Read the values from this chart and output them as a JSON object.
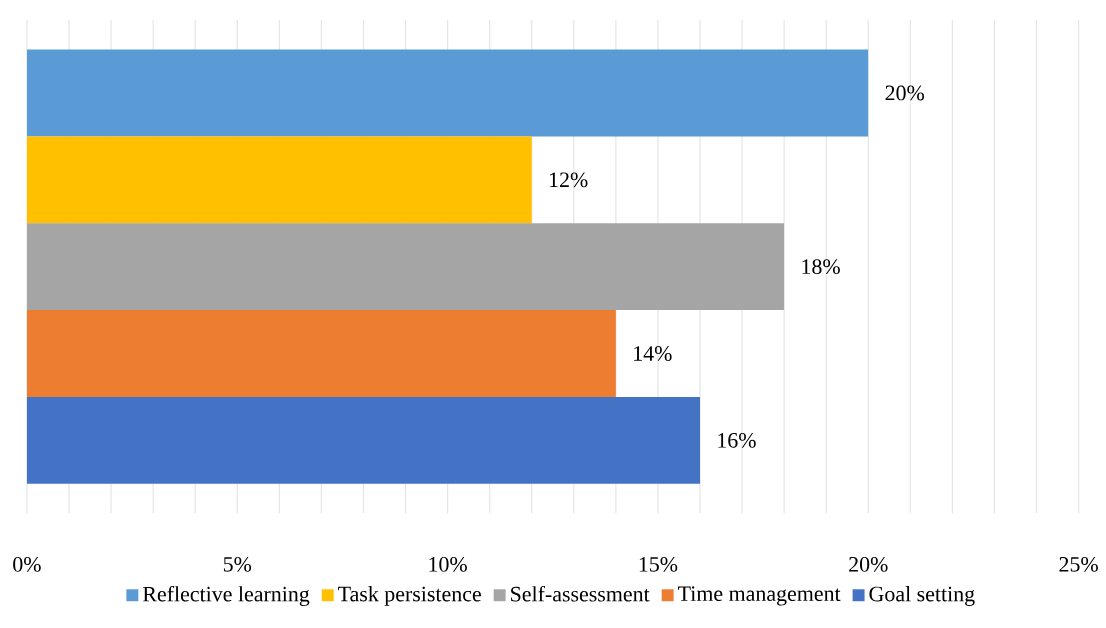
{
  "chart_data": {
    "type": "bar",
    "orientation": "horizontal",
    "categories": [
      null
    ],
    "series": [
      {
        "name": "Reflective learning",
        "color": "#5b9bd5",
        "values": [
          20
        ],
        "value_labels": [
          "20%"
        ]
      },
      {
        "name": "Task persistence",
        "color": "#ffc000",
        "values": [
          12
        ],
        "value_labels": [
          "12%"
        ]
      },
      {
        "name": "Self-assessment",
        "color": "#a5a5a5",
        "values": [
          18
        ],
        "value_labels": [
          "18%"
        ]
      },
      {
        "name": "Time management",
        "color": "#ed7d31",
        "values": [
          14
        ],
        "value_labels": [
          "14%"
        ]
      },
      {
        "name": "Goal setting",
        "color": "#4472c4",
        "values": [
          16
        ],
        "value_labels": [
          "16%"
        ]
      }
    ],
    "xlim": [
      0,
      25
    ],
    "xticks": [
      {
        "value": 0,
        "label": "0%"
      },
      {
        "value": 1,
        "label": null
      },
      {
        "value": 2,
        "label": null
      },
      {
        "value": 3,
        "label": null
      },
      {
        "value": 4,
        "label": null
      },
      {
        "value": 5,
        "label": "5%"
      },
      {
        "value": 6,
        "label": null
      },
      {
        "value": 7,
        "label": null
      },
      {
        "value": 8,
        "label": null
      },
      {
        "value": 9,
        "label": null
      },
      {
        "value": 10,
        "label": "10%"
      },
      {
        "value": 11,
        "label": null
      },
      {
        "value": 12,
        "label": null
      },
      {
        "value": 13,
        "label": null
      },
      {
        "value": 14,
        "label": null
      },
      {
        "value": 15,
        "label": "15%"
      },
      {
        "value": 16,
        "label": null
      },
      {
        "value": 17,
        "label": null
      },
      {
        "value": 18,
        "label": null
      },
      {
        "value": 19,
        "label": null
      },
      {
        "value": 20,
        "label": "20%"
      },
      {
        "value": 21,
        "label": null
      },
      {
        "value": 22,
        "label": null
      },
      {
        "value": 23,
        "label": null
      },
      {
        "value": 24,
        "label": null
      },
      {
        "value": 25,
        "label": "25%"
      }
    ],
    "grid": "x",
    "legend": "bottom"
  }
}
